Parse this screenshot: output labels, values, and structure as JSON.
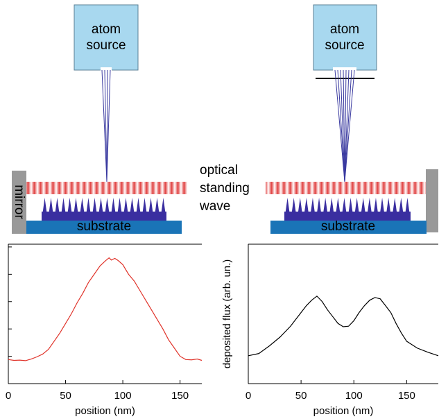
{
  "diagram": {
    "left": {
      "source_lines": [
        "atom",
        "source"
      ],
      "mirror": "mirror",
      "substrate": "substrate"
    },
    "right": {
      "source_lines": [
        "atom",
        "source"
      ],
      "substrate": "substrate"
    },
    "wave_label_lines": [
      "optical",
      "standing",
      "wave"
    ]
  },
  "chart_data": [
    {
      "type": "line",
      "xlabel": "position (nm)",
      "xlim": [
        0,
        169
      ],
      "xticks": [
        0,
        50,
        100,
        150
      ],
      "ylim": [
        -1,
        4.1
      ],
      "yticks": [
        0,
        1,
        2,
        3,
        4
      ],
      "x": [
        0,
        5,
        10,
        15,
        20,
        25,
        30,
        35,
        40,
        45,
        50,
        55,
        60,
        65,
        70,
        75,
        80,
        85,
        88,
        90,
        93,
        96,
        100,
        105,
        110,
        115,
        120,
        125,
        130,
        135,
        140,
        145,
        150,
        155,
        160,
        165,
        169
      ],
      "series": [
        {
          "color": "#e0332a",
          "values": [
            -0.12,
            -0.15,
            -0.14,
            -0.16,
            -0.1,
            -0.02,
            0.08,
            0.25,
            0.55,
            0.85,
            1.2,
            1.55,
            1.95,
            2.3,
            2.7,
            3.0,
            3.3,
            3.5,
            3.6,
            3.52,
            3.58,
            3.5,
            3.35,
            3.0,
            2.75,
            2.4,
            2.05,
            1.7,
            1.35,
            1.0,
            0.6,
            0.3,
            0.0,
            -0.12,
            -0.13,
            -0.1,
            -0.15
          ]
        }
      ]
    },
    {
      "type": "line",
      "xlabel": "position (nm)",
      "ylabel": "deposited flux (arb. un.)",
      "xlim": [
        0,
        180
      ],
      "xticks": [
        0,
        50,
        100,
        150
      ],
      "ylim": [
        -1,
        4.1
      ],
      "x": [
        0,
        10,
        20,
        30,
        40,
        50,
        55,
        60,
        65,
        70,
        75,
        80,
        85,
        90,
        95,
        100,
        105,
        110,
        115,
        120,
        125,
        130,
        135,
        140,
        145,
        150,
        160,
        170,
        180
      ],
      "series": [
        {
          "color": "#000000",
          "values": [
            0.02,
            0.1,
            0.38,
            0.7,
            1.1,
            1.6,
            1.85,
            2.05,
            2.2,
            2.0,
            1.7,
            1.45,
            1.2,
            1.08,
            1.1,
            1.3,
            1.6,
            1.85,
            2.05,
            2.15,
            2.1,
            1.85,
            1.6,
            1.2,
            0.85,
            0.55,
            0.3,
            0.15,
            0.02
          ]
        }
      ]
    }
  ]
}
